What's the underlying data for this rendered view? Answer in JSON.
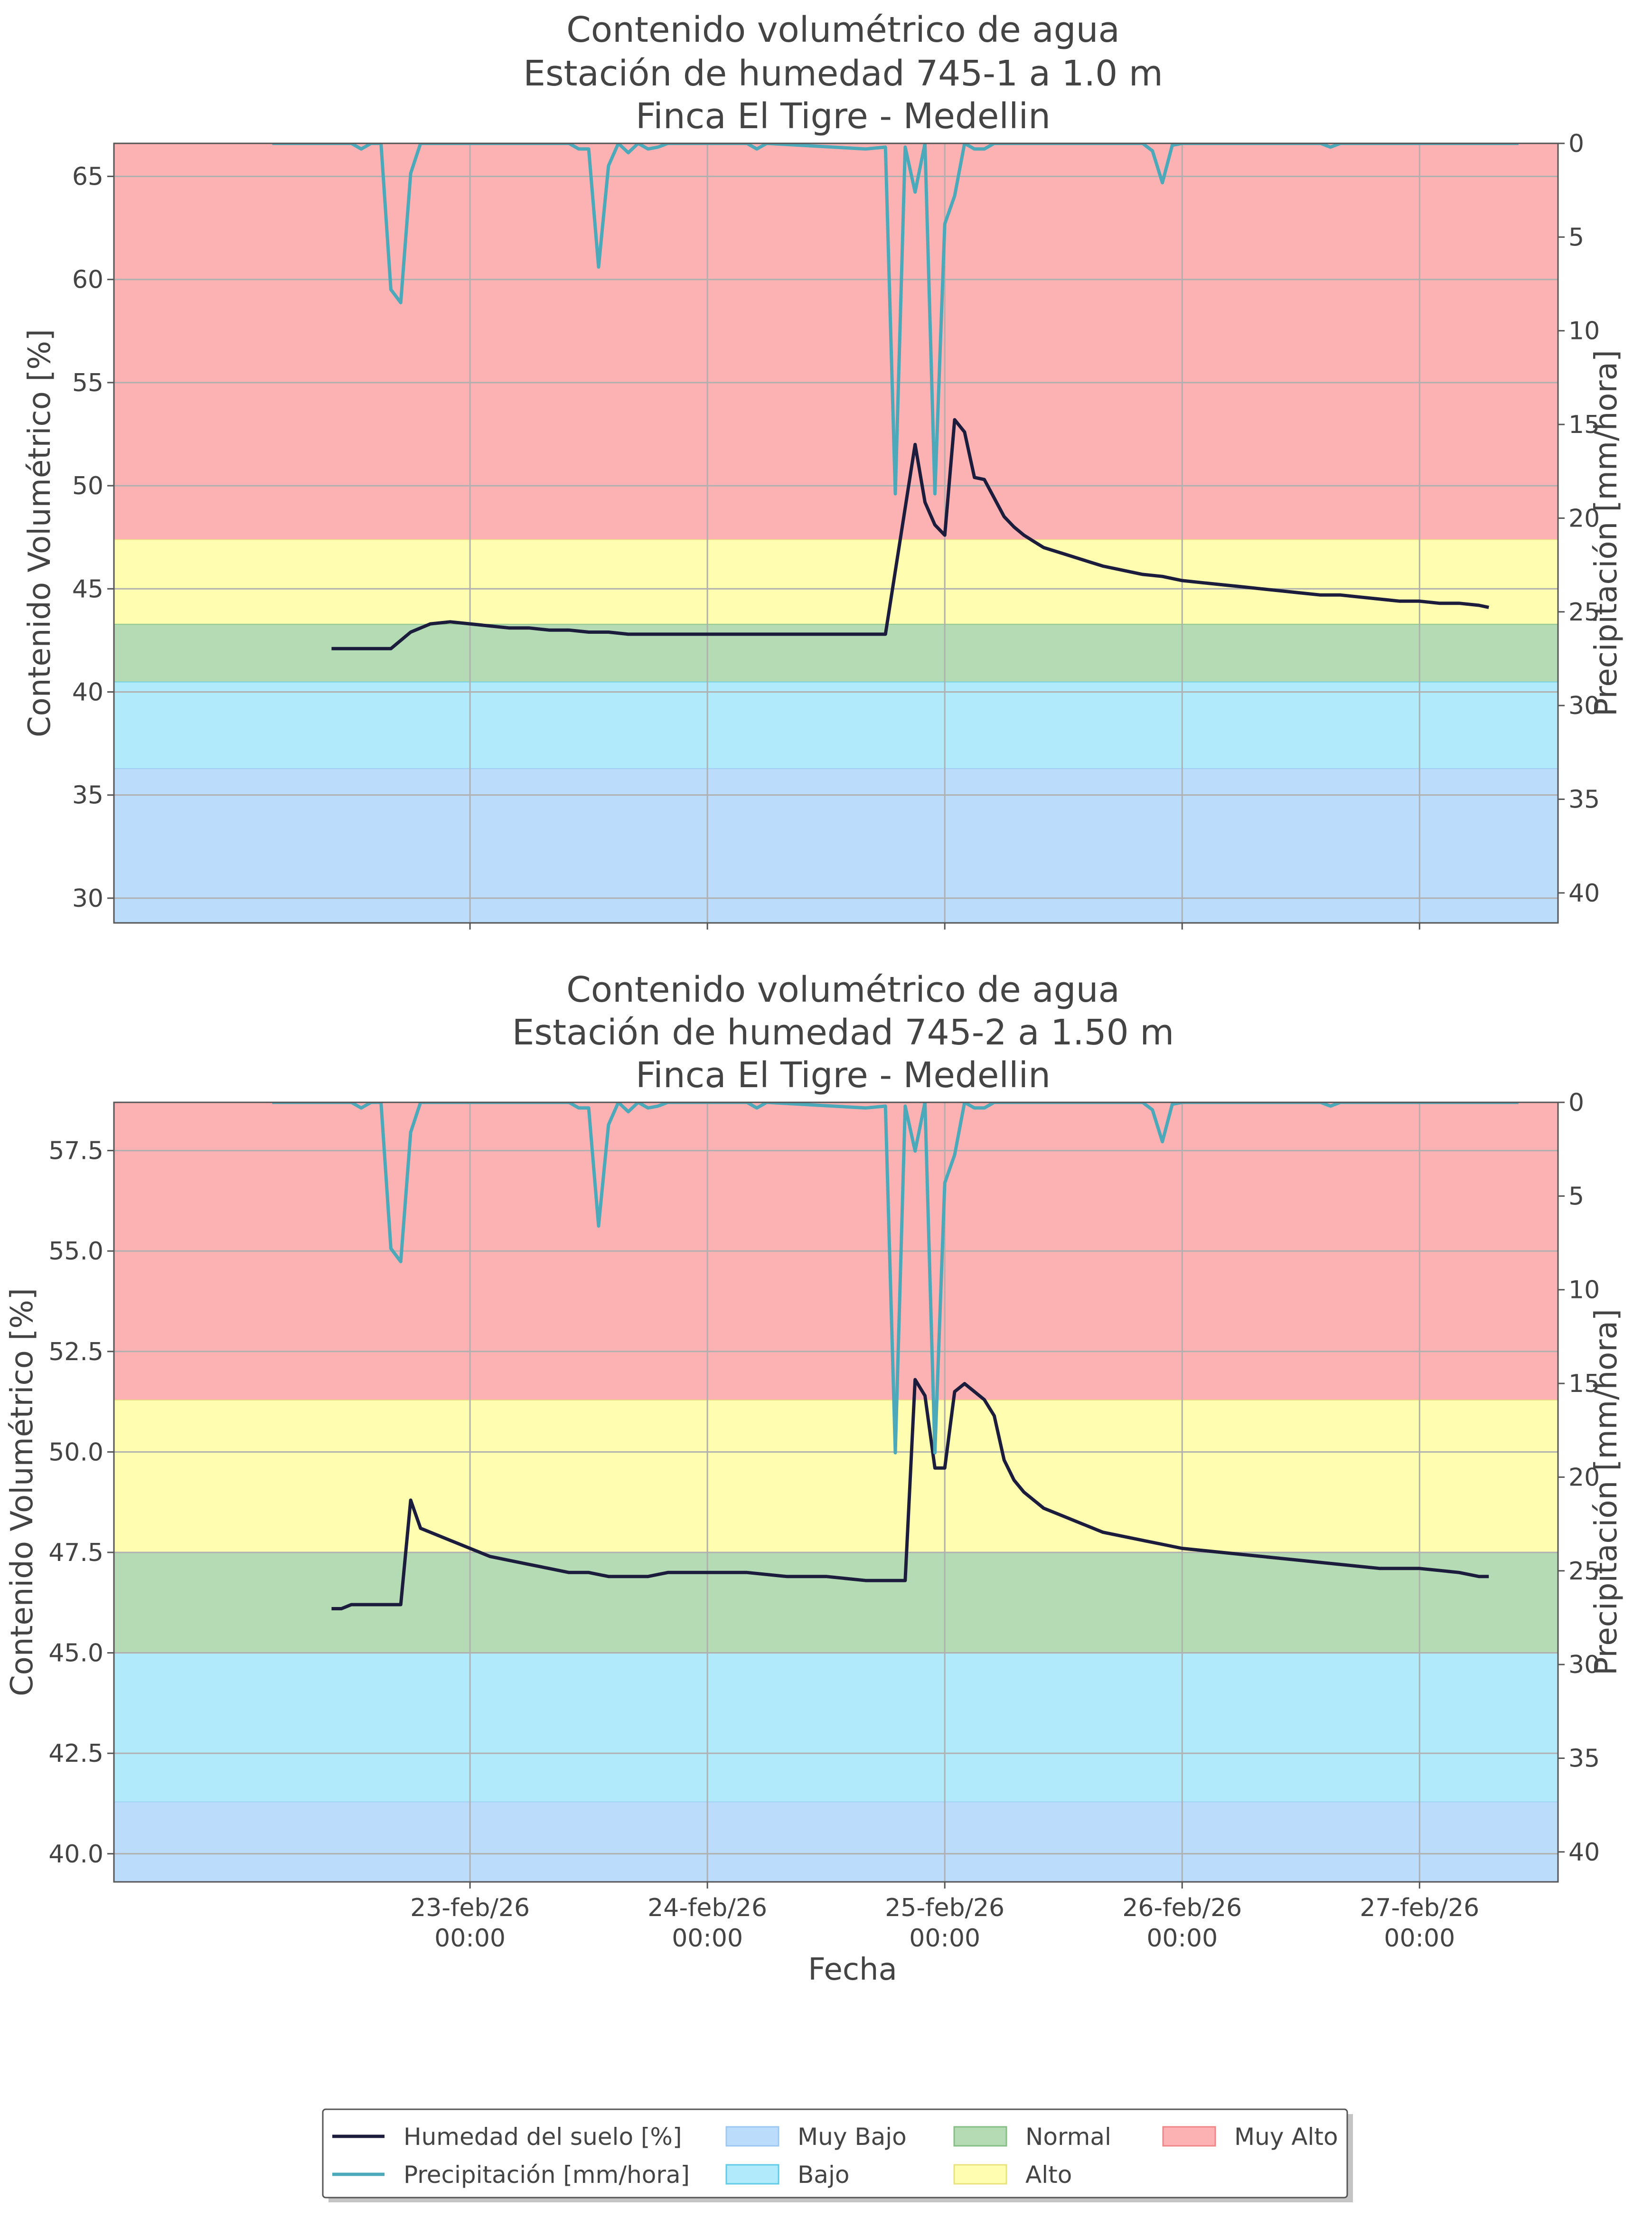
{
  "chart_data": [
    {
      "type": "line",
      "title": [
        "Contenido volumétrico de agua",
        "Estación de humedad 745-1 a 1.0 m",
        "Finca El Tigre - Medellin"
      ],
      "ylabel": "Contenido Volumétrico [%]",
      "y2label": "Precipitación [mm/hora]",
      "xlabel": "",
      "show_xticklabels": false,
      "ylim": [
        28.8,
        66.6
      ],
      "yticks": [
        30,
        35,
        40,
        45,
        50,
        55,
        60,
        65
      ],
      "ytick_labels": [
        "30",
        "35",
        "40",
        "45",
        "50",
        "55",
        "60",
        "65"
      ],
      "y2lim": [
        0,
        41.6
      ],
      "y2ticks": [
        0,
        5,
        10,
        15,
        20,
        25,
        30,
        35,
        40
      ],
      "y2tick_labels": [
        "0",
        "5",
        "10",
        "15",
        "20",
        "25",
        "30",
        "35",
        "40"
      ],
      "bands": [
        {
          "name": "Muy Bajo",
          "from": 28.8,
          "to": 36.3,
          "color": "#bbdcfb",
          "edge": "#9cc9f3"
        },
        {
          "name": "Bajo",
          "from": 36.3,
          "to": 40.5,
          "color": "#b1ebfb",
          "edge": "#5fcbe6"
        },
        {
          "name": "Normal",
          "from": 40.5,
          "to": 43.3,
          "color": "#b4dbb3",
          "edge": "#86bf86"
        },
        {
          "name": "Alto",
          "from": 43.3,
          "to": 47.4,
          "color": "#fefdb0",
          "edge": "#e9e27c"
        },
        {
          "name": "Muy Alto",
          "from": 47.4,
          "to": 66.6,
          "color": "#fcb1b3",
          "edge": "#ee8587"
        }
      ],
      "series": [
        {
          "name": "Humedad del suelo [%]",
          "axis": "left",
          "color": "#1c1c3d",
          "x": [
            "2026-02-22 10:00",
            "2026-02-22 11:00",
            "2026-02-22 12:00",
            "2026-02-22 14:00",
            "2026-02-22 16:00",
            "2026-02-22 18:00",
            "2026-02-22 20:00",
            "2026-02-22 22:00",
            "2026-02-23 00:00",
            "2026-02-23 02:00",
            "2026-02-23 04:00",
            "2026-02-23 06:00",
            "2026-02-23 08:00",
            "2026-02-23 10:00",
            "2026-02-23 12:00",
            "2026-02-23 14:00",
            "2026-02-23 16:00",
            "2026-02-23 18:00",
            "2026-02-23 20:00",
            "2026-02-23 22:00",
            "2026-02-24 00:00",
            "2026-02-24 06:00",
            "2026-02-24 12:00",
            "2026-02-24 18:00",
            "2026-02-24 21:00",
            "2026-02-24 22:00",
            "2026-02-24 23:00",
            "2026-02-25 00:00",
            "2026-02-25 01:00",
            "2026-02-25 02:00",
            "2026-02-25 03:00",
            "2026-02-25 04:00",
            "2026-02-25 05:00",
            "2026-02-25 06:00",
            "2026-02-25 07:00",
            "2026-02-25 08:00",
            "2026-02-25 09:00",
            "2026-02-25 10:00",
            "2026-02-25 12:00",
            "2026-02-25 14:00",
            "2026-02-25 16:00",
            "2026-02-25 18:00",
            "2026-02-25 20:00",
            "2026-02-25 22:00",
            "2026-02-26 00:00",
            "2026-02-26 02:00",
            "2026-02-26 04:00",
            "2026-02-26 06:00",
            "2026-02-26 08:00",
            "2026-02-26 10:00",
            "2026-02-26 12:00",
            "2026-02-26 14:00",
            "2026-02-26 16:00",
            "2026-02-26 18:00",
            "2026-02-26 20:00",
            "2026-02-26 22:00",
            "2026-02-27 00:00",
            "2026-02-27 02:00",
            "2026-02-27 04:00",
            "2026-02-27 06:00",
            "2026-02-27 07:00"
          ],
          "values": [
            42.1,
            42.1,
            42.1,
            42.1,
            42.1,
            42.9,
            43.3,
            43.4,
            43.3,
            43.2,
            43.1,
            43.1,
            43.0,
            43.0,
            42.9,
            42.9,
            42.8,
            42.8,
            42.8,
            42.8,
            42.8,
            42.8,
            42.8,
            42.8,
            52.0,
            49.2,
            48.1,
            47.6,
            53.2,
            52.6,
            50.4,
            50.3,
            49.4,
            48.5,
            48.0,
            47.6,
            47.3,
            47.0,
            46.7,
            46.4,
            46.1,
            45.9,
            45.7,
            45.6,
            45.4,
            45.3,
            45.2,
            45.1,
            45.0,
            44.9,
            44.8,
            44.7,
            44.7,
            44.6,
            44.5,
            44.4,
            44.4,
            44.3,
            44.3,
            44.2,
            44.1
          ]
        },
        {
          "name": "Precipitación [mm/hora]",
          "axis": "right",
          "color": "#4ca9ba",
          "x": [
            "2026-02-22 04:00",
            "2026-02-22 10:00",
            "2026-02-22 12:00",
            "2026-02-22 13:00",
            "2026-02-22 14:00",
            "2026-02-22 15:00",
            "2026-02-22 16:00",
            "2026-02-22 17:00",
            "2026-02-22 18:00",
            "2026-02-22 19:00",
            "2026-02-22 20:00",
            "2026-02-23 00:00",
            "2026-02-23 10:00",
            "2026-02-23 11:00",
            "2026-02-23 12:00",
            "2026-02-23 13:00",
            "2026-02-23 14:00",
            "2026-02-23 15:00",
            "2026-02-23 16:00",
            "2026-02-23 17:00",
            "2026-02-23 18:00",
            "2026-02-23 19:00",
            "2026-02-23 20:00",
            "2026-02-24 00:00",
            "2026-02-24 04:00",
            "2026-02-24 05:00",
            "2026-02-24 06:00",
            "2026-02-24 16:00",
            "2026-02-24 18:00",
            "2026-02-24 19:00",
            "2026-02-24 20:00",
            "2026-02-24 21:00",
            "2026-02-24 22:00",
            "2026-02-24 23:00",
            "2026-02-25 00:00",
            "2026-02-25 01:00",
            "2026-02-25 02:00",
            "2026-02-25 03:00",
            "2026-02-25 04:00",
            "2026-02-25 05:00",
            "2026-02-25 06:00",
            "2026-02-25 20:00",
            "2026-02-25 21:00",
            "2026-02-25 22:00",
            "2026-02-25 23:00",
            "2026-02-26 00:00",
            "2026-02-26 14:00",
            "2026-02-26 15:00",
            "2026-02-26 16:00",
            "2026-02-27 00:00",
            "2026-02-27 10:00"
          ],
          "values": [
            0,
            0,
            0,
            0.3,
            0,
            0,
            7.8,
            8.5,
            1.6,
            0,
            0,
            0,
            0,
            0.3,
            0.3,
            6.6,
            1.2,
            0,
            0.5,
            0,
            0.3,
            0.2,
            0,
            0,
            0,
            0.3,
            0,
            0.3,
            0.2,
            18.7,
            0.2,
            2.6,
            0,
            18.7,
            4.3,
            2.8,
            0,
            0.3,
            0.3,
            0,
            0,
            0,
            0.4,
            2.1,
            0.1,
            0,
            0,
            0.2,
            0,
            0,
            0
          ]
        }
      ]
    },
    {
      "type": "line",
      "title": [
        "Contenido volumétrico de agua",
        "Estación de humedad 745-2 a 1.50 m",
        "Finca El Tigre - Medellin"
      ],
      "ylabel": "Contenido Volumétrico [%]",
      "y2label": "Precipitación [mm/hora]",
      "xlabel": "Fecha",
      "show_xticklabels": true,
      "xticks": [
        "2026-02-23 00:00",
        "2026-02-24 00:00",
        "2026-02-25 00:00",
        "2026-02-26 00:00",
        "2026-02-27 00:00"
      ],
      "xtick_labels": [
        [
          "23-feb/26",
          "00:00"
        ],
        [
          "24-feb/26",
          "00:00"
        ],
        [
          "25-feb/26",
          "00:00"
        ],
        [
          "26-feb/26",
          "00:00"
        ],
        [
          "27-feb/26",
          "00:00"
        ]
      ],
      "ylim": [
        39.3,
        58.7
      ],
      "yticks": [
        40.0,
        42.5,
        45.0,
        47.5,
        50.0,
        52.5,
        55.0,
        57.5
      ],
      "ytick_labels": [
        "40.0",
        "42.5",
        "45.0",
        "47.5",
        "50.0",
        "52.5",
        "55.0",
        "57.5"
      ],
      "y2lim": [
        0,
        41.6
      ],
      "y2ticks": [
        0,
        5,
        10,
        15,
        20,
        25,
        30,
        35,
        40
      ],
      "y2tick_labels": [
        "0",
        "5",
        "10",
        "15",
        "20",
        "25",
        "30",
        "35",
        "40"
      ],
      "bands": [
        {
          "name": "Muy Bajo",
          "from": 39.3,
          "to": 41.3,
          "color": "#bbdcfb",
          "edge": "#9cc9f3"
        },
        {
          "name": "Bajo",
          "from": 41.3,
          "to": 45.0,
          "color": "#b1ebfb",
          "edge": "#5fcbe6"
        },
        {
          "name": "Normal",
          "from": 45.0,
          "to": 47.5,
          "color": "#b4dbb3",
          "edge": "#86bf86"
        },
        {
          "name": "Alto",
          "from": 47.5,
          "to": 51.3,
          "color": "#fefdb0",
          "edge": "#e9e27c"
        },
        {
          "name": "Muy Alto",
          "from": 51.3,
          "to": 58.7,
          "color": "#fcb1b3",
          "edge": "#ee8587"
        }
      ],
      "series": [
        {
          "name": "Humedad del suelo [%]",
          "axis": "left",
          "color": "#1c1c3d",
          "x": [
            "2026-02-22 10:00",
            "2026-02-22 11:00",
            "2026-02-22 12:00",
            "2026-02-22 14:00",
            "2026-02-22 16:00",
            "2026-02-22 17:00",
            "2026-02-22 18:00",
            "2026-02-22 19:00",
            "2026-02-22 20:00",
            "2026-02-22 22:00",
            "2026-02-23 00:00",
            "2026-02-23 02:00",
            "2026-02-23 04:00",
            "2026-02-23 06:00",
            "2026-02-23 08:00",
            "2026-02-23 10:00",
            "2026-02-23 12:00",
            "2026-02-23 14:00",
            "2026-02-23 16:00",
            "2026-02-23 18:00",
            "2026-02-23 20:00",
            "2026-02-24 00:00",
            "2026-02-24 04:00",
            "2026-02-24 08:00",
            "2026-02-24 12:00",
            "2026-02-24 16:00",
            "2026-02-24 18:00",
            "2026-02-24 20:00",
            "2026-02-24 21:00",
            "2026-02-24 22:00",
            "2026-02-24 23:00",
            "2026-02-25 00:00",
            "2026-02-25 01:00",
            "2026-02-25 02:00",
            "2026-02-25 03:00",
            "2026-02-25 04:00",
            "2026-02-25 05:00",
            "2026-02-25 06:00",
            "2026-02-25 07:00",
            "2026-02-25 08:00",
            "2026-02-25 10:00",
            "2026-02-25 12:00",
            "2026-02-25 14:00",
            "2026-02-25 16:00",
            "2026-02-25 18:00",
            "2026-02-25 20:00",
            "2026-02-25 22:00",
            "2026-02-26 00:00",
            "2026-02-26 04:00",
            "2026-02-26 08:00",
            "2026-02-26 12:00",
            "2026-02-26 16:00",
            "2026-02-26 20:00",
            "2026-02-27 00:00",
            "2026-02-27 04:00",
            "2026-02-27 06:00",
            "2026-02-27 07:00"
          ],
          "values": [
            46.1,
            46.1,
            46.2,
            46.2,
            46.2,
            46.2,
            48.8,
            48.1,
            48.0,
            47.8,
            47.6,
            47.4,
            47.3,
            47.2,
            47.1,
            47.0,
            47.0,
            46.9,
            46.9,
            46.9,
            47.0,
            47.0,
            47.0,
            46.9,
            46.9,
            46.8,
            46.8,
            46.8,
            51.8,
            51.4,
            49.6,
            49.6,
            51.5,
            51.7,
            51.5,
            51.3,
            50.9,
            49.8,
            49.3,
            49.0,
            48.6,
            48.4,
            48.2,
            48.0,
            47.9,
            47.8,
            47.7,
            47.6,
            47.5,
            47.4,
            47.3,
            47.2,
            47.1,
            47.1,
            47.0,
            46.9,
            46.9
          ]
        },
        {
          "name": "Precipitación [mm/hora]",
          "axis": "right",
          "color": "#4ca9ba",
          "x": [
            "2026-02-22 04:00",
            "2026-02-22 10:00",
            "2026-02-22 12:00",
            "2026-02-22 13:00",
            "2026-02-22 14:00",
            "2026-02-22 15:00",
            "2026-02-22 16:00",
            "2026-02-22 17:00",
            "2026-02-22 18:00",
            "2026-02-22 19:00",
            "2026-02-22 20:00",
            "2026-02-23 00:00",
            "2026-02-23 10:00",
            "2026-02-23 11:00",
            "2026-02-23 12:00",
            "2026-02-23 13:00",
            "2026-02-23 14:00",
            "2026-02-23 15:00",
            "2026-02-23 16:00",
            "2026-02-23 17:00",
            "2026-02-23 18:00",
            "2026-02-23 19:00",
            "2026-02-23 20:00",
            "2026-02-24 00:00",
            "2026-02-24 04:00",
            "2026-02-24 05:00",
            "2026-02-24 06:00",
            "2026-02-24 16:00",
            "2026-02-24 18:00",
            "2026-02-24 19:00",
            "2026-02-24 20:00",
            "2026-02-24 21:00",
            "2026-02-24 22:00",
            "2026-02-24 23:00",
            "2026-02-25 00:00",
            "2026-02-25 01:00",
            "2026-02-25 02:00",
            "2026-02-25 03:00",
            "2026-02-25 04:00",
            "2026-02-25 05:00",
            "2026-02-25 06:00",
            "2026-02-25 20:00",
            "2026-02-25 21:00",
            "2026-02-25 22:00",
            "2026-02-25 23:00",
            "2026-02-26 00:00",
            "2026-02-26 14:00",
            "2026-02-26 15:00",
            "2026-02-26 16:00",
            "2026-02-27 00:00",
            "2026-02-27 10:00"
          ],
          "values": [
            0,
            0,
            0,
            0.3,
            0,
            0,
            7.8,
            8.5,
            1.6,
            0,
            0,
            0,
            0,
            0.3,
            0.3,
            6.6,
            1.2,
            0,
            0.5,
            0,
            0.3,
            0.2,
            0,
            0,
            0,
            0.3,
            0,
            0.3,
            0.2,
            18.7,
            0.2,
            2.6,
            0,
            18.7,
            4.3,
            2.8,
            0,
            0.3,
            0.3,
            0,
            0,
            0,
            0.4,
            2.1,
            0.1,
            0,
            0,
            0.2,
            0,
            0,
            0
          ]
        }
      ]
    }
  ],
  "x_domain": [
    "2026-02-21 12:00",
    "2026-02-27 14:00"
  ],
  "legend": {
    "placement": "bottom-center",
    "entries": [
      {
        "label": "Humedad del suelo [%]",
        "kind": "line",
        "color": "#1c1c3d"
      },
      {
        "label": "Precipitación [mm/hora]",
        "kind": "line",
        "color": "#4ca9ba"
      },
      {
        "label": "Muy Bajo",
        "kind": "patch",
        "color": "#bbdcfb",
        "edge": "#9cc9f3"
      },
      {
        "label": "Bajo",
        "kind": "patch",
        "color": "#b1ebfb",
        "edge": "#5fcbe6"
      },
      {
        "label": "Normal",
        "kind": "patch",
        "color": "#b4dbb3",
        "edge": "#86bf86"
      },
      {
        "label": "Alto",
        "kind": "patch",
        "color": "#fefdb0",
        "edge": "#e9e27c"
      },
      {
        "label": "Muy Alto",
        "kind": "patch",
        "color": "#fcb1b3",
        "edge": "#ee8587"
      }
    ]
  },
  "grid": true
}
